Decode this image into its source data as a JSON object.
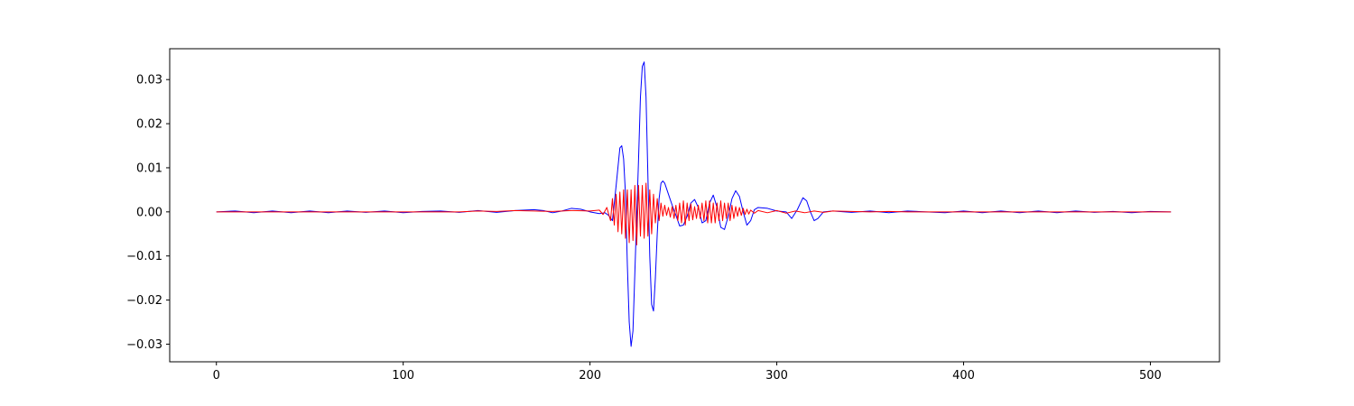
{
  "chart_data": {
    "type": "line",
    "title": "",
    "xlabel": "",
    "ylabel": "",
    "xlim": [
      -25,
      537
    ],
    "ylim": [
      -0.034,
      0.037
    ],
    "grid": false,
    "legend": "none",
    "x_ticks": [
      0,
      100,
      200,
      300,
      400,
      500
    ],
    "x_tick_labels": [
      "0",
      "100",
      "200",
      "300",
      "400",
      "500"
    ],
    "y_ticks": [
      -0.03,
      -0.02,
      -0.01,
      0.0,
      0.01,
      0.02,
      0.03
    ],
    "y_tick_labels": [
      "−0.03",
      "−0.02",
      "−0.01",
      "0.00",
      "0.01",
      "0.02",
      "0.03"
    ],
    "series": [
      {
        "color": "#0000ff",
        "points": [
          [
            0,
            0.0
          ],
          [
            10,
            0.0002
          ],
          [
            20,
            -0.0002
          ],
          [
            30,
            0.0002
          ],
          [
            40,
            -0.0002
          ],
          [
            50,
            0.0002
          ],
          [
            60,
            -0.0002
          ],
          [
            70,
            0.0002
          ],
          [
            80,
            -0.0001
          ],
          [
            90,
            0.0002
          ],
          [
            100,
            -0.0002
          ],
          [
            110,
            0.0001
          ],
          [
            120,
            0.0002
          ],
          [
            130,
            -0.0001
          ],
          [
            140,
            0.0003
          ],
          [
            150,
            -0.0001
          ],
          [
            160,
            0.0003
          ],
          [
            170,
            0.0005
          ],
          [
            175,
            0.0003
          ],
          [
            180,
            -0.0002
          ],
          [
            185,
            0.0002
          ],
          [
            190,
            0.0008
          ],
          [
            195,
            0.0006
          ],
          [
            200,
            0.0
          ],
          [
            205,
            -0.0004
          ],
          [
            208,
            -0.0002
          ],
          [
            210,
            -0.0008
          ],
          [
            212,
            -0.002
          ],
          [
            214,
            0.006
          ],
          [
            216,
            0.0145
          ],
          [
            217,
            0.015
          ],
          [
            218,
            0.012
          ],
          [
            219,
            0.004
          ],
          [
            220,
            -0.012
          ],
          [
            221,
            -0.025
          ],
          [
            222,
            -0.0305
          ],
          [
            223,
            -0.027
          ],
          [
            224,
            -0.014
          ],
          [
            225,
            -0.001
          ],
          [
            226,
            0.012
          ],
          [
            227,
            0.026
          ],
          [
            228,
            0.033
          ],
          [
            229,
            0.034
          ],
          [
            230,
            0.026
          ],
          [
            231,
            0.008
          ],
          [
            232,
            -0.01
          ],
          [
            233,
            -0.021
          ],
          [
            234,
            -0.0225
          ],
          [
            235,
            -0.015
          ],
          [
            236,
            -0.005
          ],
          [
            237,
            0.003
          ],
          [
            238,
            0.0065
          ],
          [
            239,
            0.007
          ],
          [
            240,
            0.0065
          ],
          [
            242,
            0.004
          ],
          [
            244,
            0.0015
          ],
          [
            246,
            -0.0008
          ],
          [
            248,
            -0.0032
          ],
          [
            250,
            -0.003
          ],
          [
            252,
            -0.001
          ],
          [
            254,
            0.002
          ],
          [
            256,
            0.0028
          ],
          [
            258,
            0.001
          ],
          [
            260,
            -0.0025
          ],
          [
            262,
            -0.002
          ],
          [
            264,
            0.002
          ],
          [
            266,
            0.0038
          ],
          [
            268,
            0.001
          ],
          [
            270,
            -0.0035
          ],
          [
            272,
            -0.004
          ],
          [
            274,
            -0.001
          ],
          [
            276,
            0.003
          ],
          [
            278,
            0.0048
          ],
          [
            280,
            0.0035
          ],
          [
            282,
            0.0
          ],
          [
            284,
            -0.003
          ],
          [
            286,
            -0.002
          ],
          [
            288,
            0.0005
          ],
          [
            290,
            0.001
          ],
          [
            295,
            0.0008
          ],
          [
            300,
            0.0002
          ],
          [
            305,
            0.0
          ],
          [
            308,
            -0.0015
          ],
          [
            311,
            0.0005
          ],
          [
            314,
            0.0032
          ],
          [
            316,
            0.0025
          ],
          [
            318,
            0.0
          ],
          [
            320,
            -0.002
          ],
          [
            322,
            -0.0015
          ],
          [
            325,
            0.0
          ],
          [
            330,
            0.0002
          ],
          [
            340,
            -0.0001
          ],
          [
            350,
            0.0002
          ],
          [
            360,
            -0.0002
          ],
          [
            370,
            0.0002
          ],
          [
            380,
            0.0
          ],
          [
            390,
            -0.0002
          ],
          [
            400,
            0.0002
          ],
          [
            410,
            -0.0002
          ],
          [
            420,
            0.0002
          ],
          [
            430,
            -0.0002
          ],
          [
            440,
            0.0002
          ],
          [
            450,
            -0.0002
          ],
          [
            460,
            0.0002
          ],
          [
            470,
            -0.0001
          ],
          [
            480,
            0.0001
          ],
          [
            490,
            -0.0002
          ],
          [
            500,
            0.0001
          ],
          [
            511,
            0.0
          ]
        ]
      },
      {
        "color": "#ff0000",
        "points": [
          [
            0,
            0.0
          ],
          [
            130,
            0.0
          ],
          [
            140,
            0.0002
          ],
          [
            150,
            0.0001
          ],
          [
            160,
            0.0003
          ],
          [
            170,
            0.0002
          ],
          [
            180,
            0.0001
          ],
          [
            190,
            0.0003
          ],
          [
            200,
            0.0002
          ],
          [
            205,
            0.0004
          ],
          [
            207,
            -0.0006
          ],
          [
            209,
            0.001
          ],
          [
            211,
            -0.002
          ],
          [
            212,
            0.003
          ],
          [
            213,
            -0.003
          ],
          [
            214,
            0.004
          ],
          [
            215,
            -0.0045
          ],
          [
            216,
            0.0045
          ],
          [
            217,
            -0.005
          ],
          [
            218,
            0.005
          ],
          [
            219,
            -0.006
          ],
          [
            220,
            0.005
          ],
          [
            221,
            -0.007
          ],
          [
            222,
            0.005
          ],
          [
            223,
            -0.0065
          ],
          [
            224,
            0.006
          ],
          [
            225,
            -0.0075
          ],
          [
            226,
            0.006
          ],
          [
            227,
            -0.0055
          ],
          [
            228,
            0.006
          ],
          [
            229,
            -0.006
          ],
          [
            230,
            0.0065
          ],
          [
            231,
            -0.0055
          ],
          [
            232,
            0.005
          ],
          [
            233,
            -0.005
          ],
          [
            234,
            0.004
          ],
          [
            235,
            -0.0025
          ],
          [
            236,
            0.003
          ],
          [
            237,
            -0.002
          ],
          [
            238,
            0.002
          ],
          [
            239,
            -0.001
          ],
          [
            240,
            0.0015
          ],
          [
            241,
            -0.0008
          ],
          [
            242,
            0.001
          ],
          [
            243,
            -0.0012
          ],
          [
            244,
            0.0012
          ],
          [
            245,
            -0.0015
          ],
          [
            246,
            0.0015
          ],
          [
            247,
            -0.002
          ],
          [
            248,
            0.002
          ],
          [
            249,
            -0.0025
          ],
          [
            250,
            0.0025
          ],
          [
            251,
            -0.003
          ],
          [
            252,
            0.002
          ],
          [
            253,
            -0.002
          ],
          [
            254,
            0.0018
          ],
          [
            255,
            -0.0018
          ],
          [
            256,
            0.0012
          ],
          [
            257,
            -0.0015
          ],
          [
            258,
            0.0015
          ],
          [
            259,
            -0.0015
          ],
          [
            260,
            0.002
          ],
          [
            261,
            -0.002
          ],
          [
            262,
            0.0025
          ],
          [
            263,
            -0.0025
          ],
          [
            264,
            0.0025
          ],
          [
            265,
            -0.0025
          ],
          [
            266,
            0.002
          ],
          [
            267,
            -0.0025
          ],
          [
            268,
            0.002
          ],
          [
            269,
            -0.002
          ],
          [
            270,
            0.0025
          ],
          [
            271,
            -0.002
          ],
          [
            272,
            0.002
          ],
          [
            273,
            -0.0015
          ],
          [
            274,
            0.002
          ],
          [
            275,
            -0.002
          ],
          [
            276,
            0.0015
          ],
          [
            277,
            -0.0015
          ],
          [
            278,
            0.0012
          ],
          [
            279,
            -0.001
          ],
          [
            280,
            0.001
          ],
          [
            281,
            -0.0008
          ],
          [
            282,
            0.0008
          ],
          [
            283,
            -0.0006
          ],
          [
            284,
            0.0006
          ],
          [
            285,
            -0.0005
          ],
          [
            286,
            0.0004
          ],
          [
            288,
            -0.0003
          ],
          [
            290,
            0.0003
          ],
          [
            295,
            -0.0002
          ],
          [
            300,
            0.0003
          ],
          [
            305,
            -0.0003
          ],
          [
            310,
            0.0002
          ],
          [
            315,
            -0.0002
          ],
          [
            320,
            0.0002
          ],
          [
            325,
            -0.0001
          ],
          [
            330,
            0.0002
          ],
          [
            340,
            0.0001
          ],
          [
            350,
            0.0
          ],
          [
            360,
            0.0001
          ],
          [
            370,
            0.0
          ],
          [
            380,
            0.0
          ],
          [
            511,
            0.0
          ]
        ]
      }
    ]
  }
}
